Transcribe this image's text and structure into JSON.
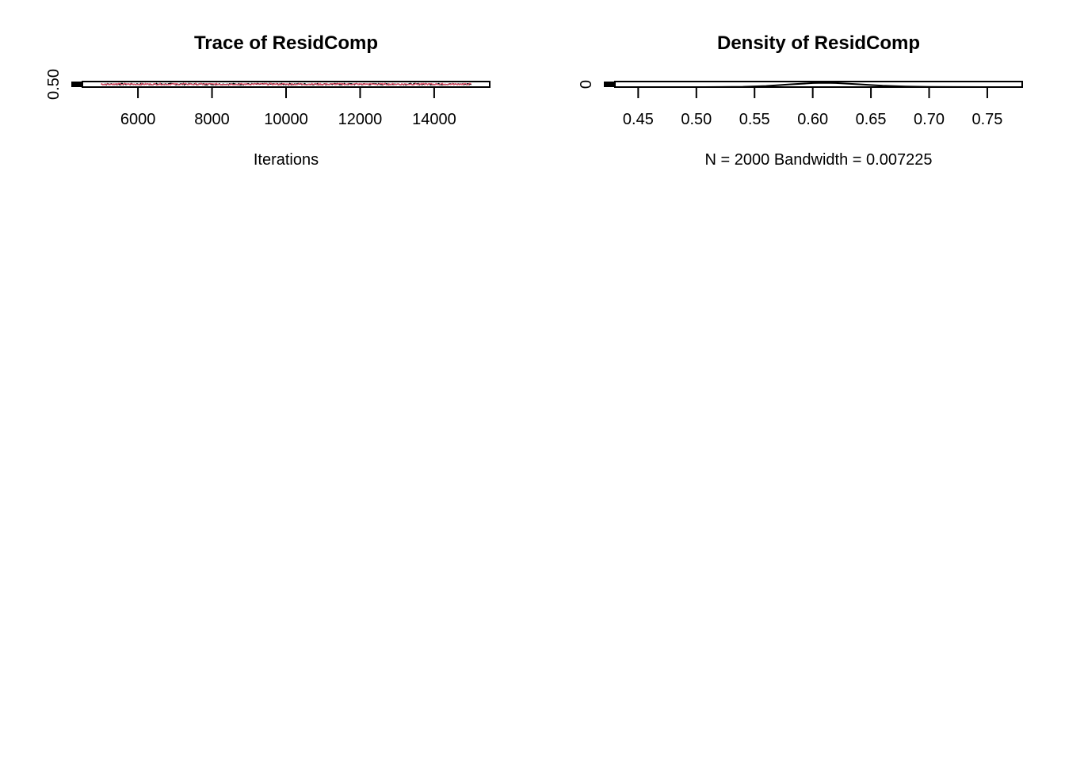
{
  "chart_data": [
    {
      "type": "line",
      "title": "Trace of ResidComp",
      "xlabel": "Iterations",
      "ylabel": "",
      "xlim": [
        4500,
        15500
      ],
      "ylim": [
        0.42,
        0.78
      ],
      "x_ticks": [
        {
          "value": 6000,
          "label": "6000"
        },
        {
          "value": 8000,
          "label": "8000"
        },
        {
          "value": 10000,
          "label": "10000"
        },
        {
          "value": 12000,
          "label": "12000"
        },
        {
          "value": 14000,
          "label": "14000"
        }
      ],
      "y_ticks": [
        {
          "value": 0.5,
          "label": "0.50"
        }
      ],
      "series": [
        {
          "color": "#000000",
          "x_start": 5000,
          "x_end": 15000,
          "y_mean": 0.61,
          "y_spread": 0.05
        },
        {
          "color": "#df536b",
          "x_start": 5000,
          "x_end": 15000,
          "y_mean": 0.61,
          "y_spread": 0.05
        }
      ]
    },
    {
      "type": "line",
      "title": "Density of ResidComp",
      "xlabel": "N = 2000   Bandwidth = 0.007225",
      "ylabel": "",
      "xlim": [
        0.43,
        0.78
      ],
      "ylim": [
        0,
        20
      ],
      "x_ticks": [
        {
          "value": 0.45,
          "label": "0.45"
        },
        {
          "value": 0.5,
          "label": "0.50"
        },
        {
          "value": 0.55,
          "label": "0.55"
        },
        {
          "value": 0.6,
          "label": "0.60"
        },
        {
          "value": 0.65,
          "label": "0.65"
        },
        {
          "value": 0.7,
          "label": "0.70"
        },
        {
          "value": 0.75,
          "label": "0.75"
        }
      ],
      "y_ticks": [
        {
          "value": 0,
          "label": "0"
        }
      ],
      "density": {
        "x": [
          0.5,
          0.52,
          0.54,
          0.56,
          0.58,
          0.6,
          0.61,
          0.62,
          0.64,
          0.66,
          0.68,
          0.7,
          0.72,
          0.75,
          0.77
        ],
        "y": [
          0.0,
          0.3,
          1.2,
          4.0,
          9.5,
          14.5,
          15.5,
          14.5,
          10.0,
          5.0,
          2.0,
          0.8,
          0.3,
          0.1,
          0.0
        ]
      }
    }
  ]
}
